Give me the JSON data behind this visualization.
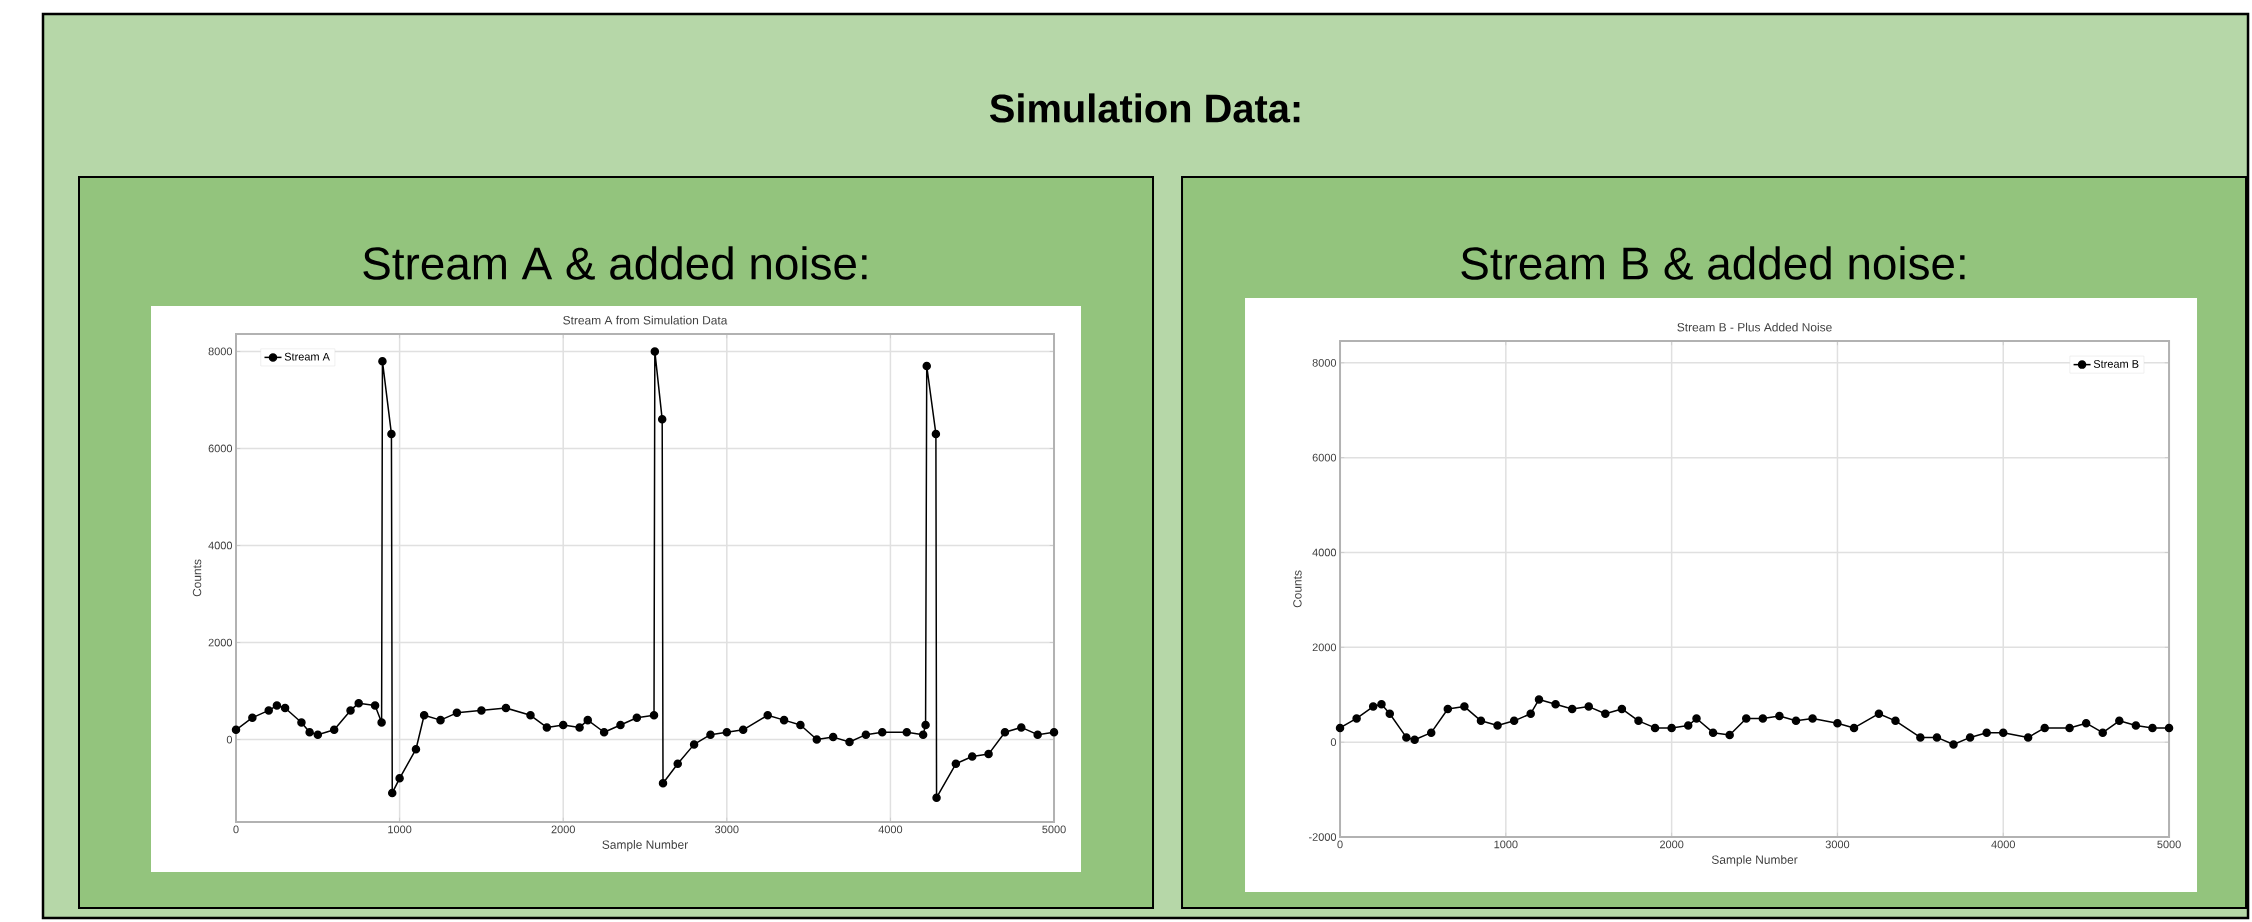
{
  "chart_data": [
    {
      "type": "line",
      "title": "Stream A & added noise:",
      "subtitle": "Stream A from Simulation Data",
      "xlabel": "Sample Number",
      "ylabel": "Counts",
      "annotations": [
        "Simulation Data:"
      ],
      "series": [
        {
          "name": "Stream A",
          "color": "#000000",
          "x": [
            0,
            100,
            200,
            250,
            300,
            400,
            450,
            500,
            600,
            700,
            750,
            850,
            890,
            895,
            950,
            955,
            1000,
            1100,
            1150,
            1250,
            1350,
            1500,
            1650,
            1800,
            1900,
            2000,
            2100,
            2150,
            2250,
            2350,
            2450,
            2555,
            2560,
            2605,
            2610,
            2700,
            2800,
            2900,
            3000,
            3100,
            3250,
            3350,
            3450,
            3550,
            3650,
            3750,
            3850,
            3950,
            4100,
            4200,
            4215,
            4222,
            4278,
            4282,
            4400,
            4500,
            4600,
            4700,
            4800,
            4900,
            5000
          ],
          "values": [
            200,
            450,
            600,
            700,
            650,
            350,
            150,
            100,
            200,
            600,
            750,
            700,
            350,
            7800,
            6300,
            -1100,
            -800,
            -200,
            500,
            400,
            550,
            600,
            650,
            500,
            250,
            300,
            250,
            400,
            150,
            300,
            450,
            500,
            8000,
            6600,
            -900,
            -500,
            -100,
            100,
            150,
            200,
            500,
            400,
            300,
            0,
            50,
            -50,
            100,
            150,
            150,
            100,
            300,
            7700,
            6300,
            -1200,
            -500,
            -350,
            -300,
            150,
            250,
            100,
            150
          ]
        }
      ],
      "xlim": [
        0,
        5000
      ],
      "ylim": [
        -1700,
        8360
      ],
      "xticks": [
        0,
        1000,
        2000,
        3000,
        4000,
        5000
      ],
      "yticks": [
        0,
        2000,
        4000,
        6000,
        8000
      ],
      "grid": true,
      "legend": "top left",
      "marker": "circle",
      "line_style": "solid"
    },
    {
      "type": "line",
      "title": "Stream B & added noise:",
      "subtitle": "Stream B - Plus Added Noise",
      "xlabel": "Sample Number",
      "ylabel": "Counts",
      "series": [
        {
          "name": "Stream B",
          "color": "#000000",
          "x": [
            0,
            100,
            200,
            250,
            300,
            400,
            450,
            550,
            650,
            750,
            850,
            950,
            1050,
            1150,
            1200,
            1300,
            1400,
            1500,
            1600,
            1700,
            1800,
            1900,
            2000,
            2100,
            2150,
            2250,
            2350,
            2450,
            2550,
            2650,
            2750,
            2850,
            3000,
            3100,
            3250,
            3350,
            3500,
            3600,
            3700,
            3800,
            3900,
            4000,
            4150,
            4250,
            4400,
            4500,
            4600,
            4700,
            4800,
            4900,
            5000
          ],
          "values": [
            300,
            500,
            750,
            800,
            600,
            100,
            50,
            200,
            700,
            750,
            450,
            350,
            450,
            600,
            900,
            800,
            700,
            750,
            600,
            700,
            450,
            300,
            300,
            350,
            500,
            200,
            150,
            500,
            500,
            550,
            450,
            500,
            400,
            300,
            600,
            450,
            100,
            100,
            -50,
            100,
            200,
            200,
            100,
            300,
            300,
            400,
            200,
            450,
            350,
            300,
            300
          ]
        }
      ],
      "xlim": [
        0,
        5000
      ],
      "ylim": [
        -2000,
        8460
      ],
      "xticks": [
        0,
        1000,
        2000,
        3000,
        4000,
        5000
      ],
      "yticks": [
        -2000,
        0,
        2000,
        4000,
        6000,
        8000
      ],
      "grid": true,
      "legend": "top right",
      "marker": "circle",
      "line_style": "solid"
    }
  ]
}
